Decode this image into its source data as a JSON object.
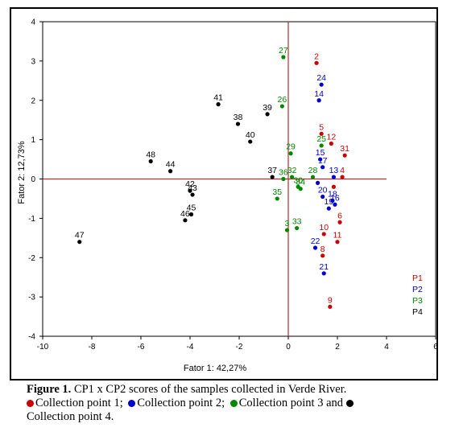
{
  "figure": {
    "caption_label": "Figure 1.",
    "caption_text": "CP1 x CP2 scores of the samples collected in Verde River.",
    "caption_legend": [
      {
        "text": "Collection point 1;",
        "color": "#cc0000"
      },
      {
        "text": "Collection point 2;",
        "color": "#0000cc"
      },
      {
        "text": "Collection point 3 and",
        "color": "#008800"
      },
      {
        "text": "Collection point 4.",
        "color": "#000000"
      }
    ]
  },
  "chart_data": {
    "type": "scatter",
    "xlabel": "Fator 1: 42,27%",
    "ylabel": "Fator 2: 12,73%",
    "xlim": [
      -10,
      6
    ],
    "ylim": [
      -4,
      4
    ],
    "xticks": [
      "-10",
      "-8",
      "-6",
      "-4",
      "-2",
      "0",
      "2",
      "4",
      "6"
    ],
    "yticks": [
      "4",
      "3",
      "2",
      "1",
      "0",
      "-1",
      "-2",
      "-3",
      "-4"
    ],
    "legend_position": "bottom-right",
    "series": [
      {
        "name": "P1",
        "color": "#cc0000",
        "points": [
          {
            "label": "2",
            "x": 1.15,
            "y": 2.95
          },
          {
            "label": "5",
            "x": 1.35,
            "y": 1.15
          },
          {
            "label": "12",
            "x": 1.75,
            "y": 0.9
          },
          {
            "label": "31",
            "x": 2.3,
            "y": 0.6
          },
          {
            "label": "4",
            "x": 2.2,
            "y": 0.05
          },
          {
            "label": "6",
            "x": 2.1,
            "y": -1.1
          },
          {
            "label": "10",
            "x": 1.45,
            "y": -1.4
          },
          {
            "label": "11",
            "x": 2.0,
            "y": -1.6
          },
          {
            "label": "8",
            "x": 1.4,
            "y": -1.95
          },
          {
            "label": "9",
            "x": 1.7,
            "y": -3.25
          },
          {
            "label": "",
            "x": 1.85,
            "y": -0.2
          }
        ]
      },
      {
        "name": "P2",
        "color": "#0000cc",
        "points": [
          {
            "label": "24",
            "x": 1.35,
            "y": 2.4
          },
          {
            "label": "14",
            "x": 1.25,
            "y": 2.0
          },
          {
            "label": "15",
            "x": 1.3,
            "y": 0.5
          },
          {
            "label": "17",
            "x": 1.4,
            "y": 0.3
          },
          {
            "label": "13",
            "x": 1.85,
            "y": 0.05
          },
          {
            "label": "20",
            "x": 1.4,
            "y": -0.45
          },
          {
            "label": "18",
            "x": 1.8,
            "y": -0.55
          },
          {
            "label": "16",
            "x": 1.9,
            "y": -0.65
          },
          {
            "label": "19",
            "x": 1.65,
            "y": -0.75
          },
          {
            "label": "22",
            "x": 1.1,
            "y": -1.75
          },
          {
            "label": "21",
            "x": 1.45,
            "y": -2.4
          },
          {
            "label": "",
            "x": 1.2,
            "y": -0.1
          }
        ]
      },
      {
        "name": "P3",
        "color": "#008800",
        "points": [
          {
            "label": "27",
            "x": -0.2,
            "y": 3.1
          },
          {
            "label": "26",
            "x": -0.25,
            "y": 1.85
          },
          {
            "label": "25",
            "x": 1.35,
            "y": 0.85
          },
          {
            "label": "29",
            "x": 0.1,
            "y": 0.65
          },
          {
            "label": "28",
            "x": 1.0,
            "y": 0.05
          },
          {
            "label": "32",
            "x": 0.15,
            "y": 0.05
          },
          {
            "label": "36",
            "x": -0.2,
            "y": 0.0
          },
          {
            "label": "30",
            "x": 0.4,
            "y": -0.2
          },
          {
            "label": "34",
            "x": 0.5,
            "y": -0.25
          },
          {
            "label": "35",
            "x": -0.45,
            "y": -0.5
          },
          {
            "label": "3",
            "x": -0.05,
            "y": -1.3
          },
          {
            "label": "33",
            "x": 0.35,
            "y": -1.25
          }
        ]
      },
      {
        "name": "P4",
        "color": "#000000",
        "points": [
          {
            "label": "41",
            "x": -2.85,
            "y": 1.9
          },
          {
            "label": "38",
            "x": -2.05,
            "y": 1.4
          },
          {
            "label": "39",
            "x": -0.85,
            "y": 1.65
          },
          {
            "label": "40",
            "x": -1.55,
            "y": 0.95
          },
          {
            "label": "48",
            "x": -5.6,
            "y": 0.45
          },
          {
            "label": "44",
            "x": -4.8,
            "y": 0.2
          },
          {
            "label": "37",
            "x": -0.65,
            "y": 0.05
          },
          {
            "label": "42",
            "x": -4.0,
            "y": -0.3
          },
          {
            "label": "43",
            "x": -3.9,
            "y": -0.4
          },
          {
            "label": "45",
            "x": -3.95,
            "y": -0.9
          },
          {
            "label": "46",
            "x": -4.2,
            "y": -1.05
          },
          {
            "label": "47",
            "x": -8.5,
            "y": -1.6
          }
        ]
      }
    ]
  }
}
